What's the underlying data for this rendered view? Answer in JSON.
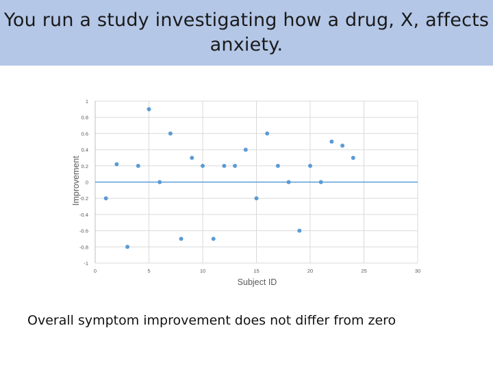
{
  "slide": {
    "title_line1": "You run a study investigating how a drug, X, affects",
    "title_line2": "anxiety.",
    "caption": "Overall symptom improvement does not differ from zero",
    "title_band_color": "#b4c7e7"
  },
  "chart_data": {
    "type": "scatter",
    "xlabel": "Subject ID",
    "ylabel": "Improvement",
    "xlim": [
      0,
      30
    ],
    "ylim": [
      -1,
      1
    ],
    "x_ticks": [
      0,
      5,
      10,
      15,
      20,
      25,
      30
    ],
    "x_tick_labels": [
      "0",
      "5",
      "10",
      "15",
      "20",
      "25",
      "30"
    ],
    "y_ticks": [
      1,
      0.8,
      0.6,
      0.4,
      0.2,
      0,
      -0.2,
      -0.4,
      -0.6,
      -0.8,
      -1
    ],
    "y_tick_labels": [
      "1",
      "0.8",
      "0.6",
      "0.4",
      "0.2",
      "0",
      "-0.2",
      "-0.4",
      "-0.6",
      "-0.8",
      "-1"
    ],
    "grid": true,
    "marker_color": "#5b9bd5",
    "zero_line_color": "#5b9bd5",
    "x": [
      1,
      2,
      3,
      4,
      5,
      6,
      7,
      8,
      9,
      10,
      11,
      12,
      13,
      14,
      15,
      16,
      17,
      18,
      19,
      20,
      21,
      22,
      23,
      24
    ],
    "y": [
      -0.2,
      0.22,
      -0.8,
      0.2,
      0.9,
      0.0,
      0.6,
      -0.7,
      0.3,
      0.2,
      -0.7,
      0.2,
      0.2,
      0.4,
      -0.2,
      0.6,
      0.2,
      0.0,
      -0.6,
      0.2,
      0.0,
      0.5,
      0.45,
      0.3
    ]
  }
}
